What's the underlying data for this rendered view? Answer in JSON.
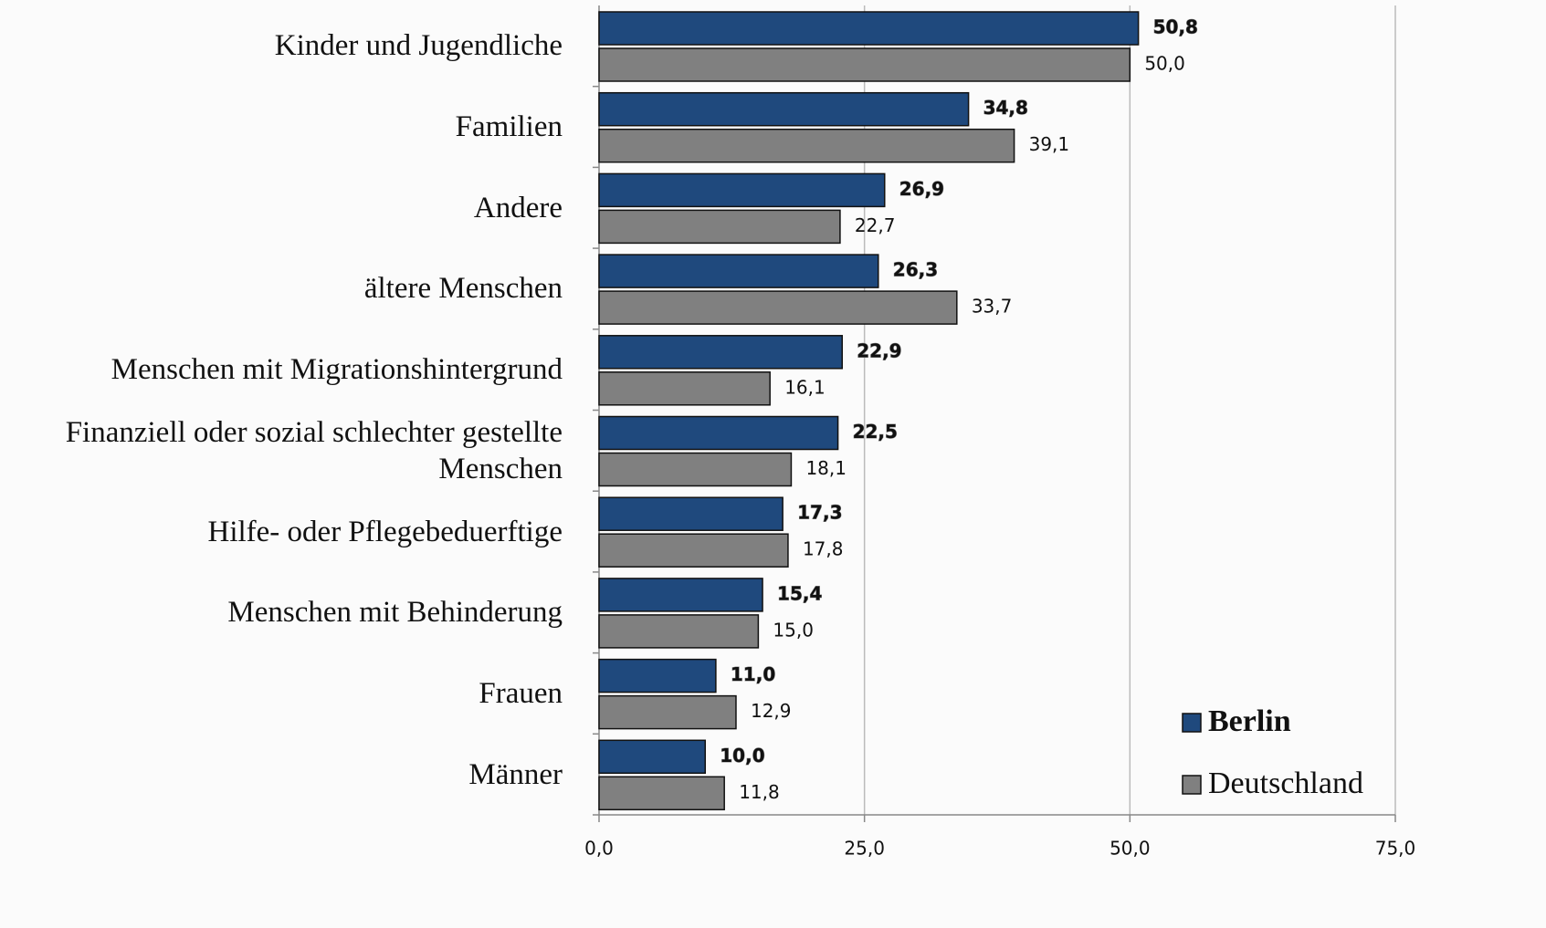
{
  "chart_data": {
    "type": "barh",
    "categories": [
      "Kinder und Jugendliche",
      "Familien",
      "Andere",
      "ältere Menschen",
      "Menschen mit Migrationshintergrund",
      "Finanziell oder sozial schlechter gestellte Menschen",
      "Hilfe- oder Pflegebeduerftige",
      "Menschen mit Behinderung",
      "Frauen",
      "Männer"
    ],
    "series": [
      {
        "name": "Berlin",
        "color": "#1f497d",
        "values": [
          50.8,
          34.8,
          26.9,
          26.3,
          22.9,
          22.5,
          17.3,
          15.4,
          11.0,
          10.0
        ],
        "value_labels": [
          "50,8",
          "34,8",
          "26,9",
          "26,3",
          "22,9",
          "22,5",
          "17,3",
          "15,4",
          "11,0",
          "10,0"
        ]
      },
      {
        "name": "Deutschland",
        "color": "#808080",
        "values": [
          50.0,
          39.1,
          22.7,
          33.7,
          16.1,
          18.1,
          17.8,
          15.0,
          12.9,
          11.8
        ],
        "value_labels": [
          "50,0",
          "39,1",
          "22,7",
          "33,7",
          "16,1",
          "18,1",
          "17,8",
          "15,0",
          "12,9",
          "11,8"
        ]
      }
    ],
    "xlim": [
      0,
      75
    ],
    "xticks": [
      {
        "value": 0,
        "label": "0,0"
      },
      {
        "value": 25,
        "label": "25,0"
      },
      {
        "value": 50,
        "label": "50,0"
      },
      {
        "value": 75,
        "label": "75,0"
      }
    ],
    "grid": true,
    "legend": "lower right"
  }
}
